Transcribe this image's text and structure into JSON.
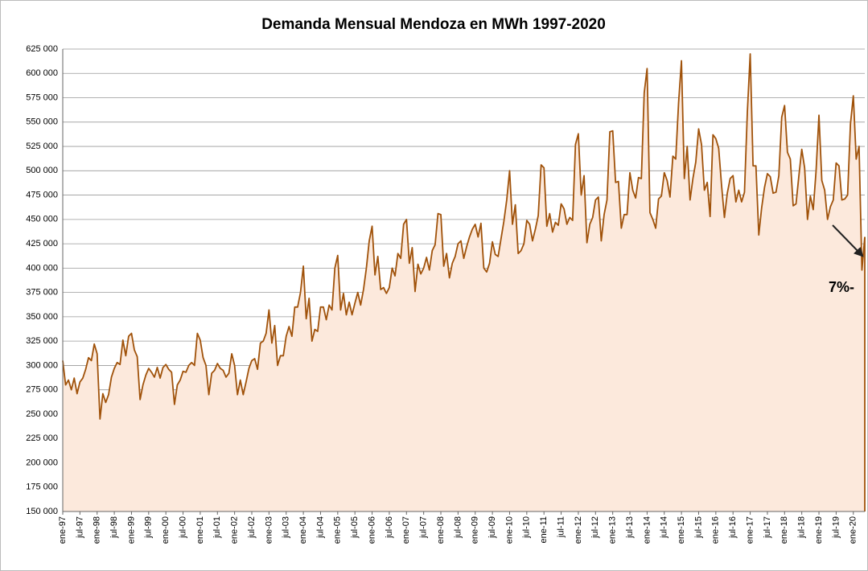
{
  "chart_data": {
    "type": "area-line",
    "title": "Demanda Mensual Mendoza en MWh 1997-2020",
    "annotation": "7%-",
    "color": "#a0520a",
    "fill": "#fce9dc",
    "categories": [
      "ene-97",
      null,
      null,
      null,
      null,
      null,
      "jul-97",
      null,
      null,
      null,
      null,
      null,
      "ene-98",
      null,
      null,
      null,
      null,
      null,
      "jul-98",
      null,
      null,
      null,
      null,
      null,
      "ene-99",
      null,
      null,
      null,
      null,
      null,
      "jul-99",
      null,
      null,
      null,
      null,
      null,
      "ene-00",
      null,
      null,
      null,
      null,
      null,
      "jul-00",
      null,
      null,
      null,
      null,
      null,
      "ene-01",
      null,
      null,
      null,
      null,
      null,
      "jul-01",
      null,
      null,
      null,
      null,
      null,
      "ene-02",
      null,
      null,
      null,
      null,
      null,
      "jul-02",
      null,
      null,
      null,
      null,
      null,
      "ene-03",
      null,
      null,
      null,
      null,
      null,
      "jul-03",
      null,
      null,
      null,
      null,
      null,
      "ene-04",
      null,
      null,
      null,
      null,
      null,
      "jul-04",
      null,
      null,
      null,
      null,
      null,
      "ene-05",
      null,
      null,
      null,
      null,
      null,
      "jul-05",
      null,
      null,
      null,
      null,
      null,
      "ene-06",
      null,
      null,
      null,
      null,
      null,
      "jul-06",
      null,
      null,
      null,
      null,
      null,
      "ene-07",
      null,
      null,
      null,
      null,
      null,
      "jul-07",
      null,
      null,
      null,
      null,
      null,
      "ene-08",
      null,
      null,
      null,
      null,
      null,
      "jul-08",
      null,
      null,
      null,
      null,
      null,
      "ene-09",
      null,
      null,
      null,
      null,
      null,
      "jul-09",
      null,
      null,
      null,
      null,
      null,
      "ene-10",
      null,
      null,
      null,
      null,
      null,
      "jul-10",
      null,
      null,
      null,
      null,
      null,
      "ene-11",
      null,
      null,
      null,
      null,
      null,
      "jul-11",
      null,
      null,
      null,
      null,
      null,
      "ene-12",
      null,
      null,
      null,
      null,
      null,
      "jul-12",
      null,
      null,
      null,
      null,
      null,
      "ene-13",
      null,
      null,
      null,
      null,
      null,
      "jul-13",
      null,
      null,
      null,
      null,
      null,
      "ene-14",
      null,
      null,
      null,
      null,
      null,
      "jul-14",
      null,
      null,
      null,
      null,
      null,
      "ene-15",
      null,
      null,
      null,
      null,
      null,
      "jul-15",
      null,
      null,
      null,
      null,
      null,
      "ene-16",
      null,
      null,
      null,
      null,
      null,
      "jul-16",
      null,
      null,
      null,
      null,
      null,
      "ene-17",
      null,
      null,
      null,
      null,
      null,
      "jul-17",
      null,
      null,
      null,
      null,
      null,
      "ene-18",
      null,
      null,
      null,
      null,
      null,
      "jul-18",
      null,
      null,
      null,
      null,
      null,
      "ene-19",
      null,
      null,
      null,
      null,
      null,
      "jul-19",
      null,
      null,
      null,
      null,
      null,
      "ene-20",
      null,
      null,
      null,
      null
    ],
    "values": [
      305000,
      280000,
      285000,
      275000,
      287000,
      271000,
      283000,
      287000,
      296000,
      308000,
      305000,
      322000,
      312000,
      245000,
      271000,
      262000,
      270000,
      288000,
      297000,
      303000,
      301000,
      326000,
      310000,
      330000,
      333000,
      316000,
      309000,
      265000,
      280000,
      290000,
      297000,
      293000,
      288000,
      298000,
      287000,
      298000,
      301000,
      296000,
      293000,
      260000,
      280000,
      285000,
      294000,
      293000,
      300000,
      303000,
      300000,
      333000,
      326000,
      308000,
      300000,
      270000,
      292000,
      295000,
      302000,
      297000,
      295000,
      288000,
      292000,
      312000,
      300000,
      270000,
      285000,
      270000,
      283000,
      297000,
      305000,
      307000,
      296000,
      323000,
      325000,
      333000,
      357000,
      323000,
      341000,
      300000,
      310000,
      310000,
      330000,
      340000,
      330000,
      360000,
      360000,
      375000,
      402000,
      348000,
      369000,
      325000,
      337000,
      335000,
      360000,
      360000,
      347000,
      362000,
      357000,
      400000,
      413000,
      357000,
      374000,
      352000,
      365000,
      352000,
      364000,
      375000,
      362000,
      378000,
      400000,
      428000,
      443000,
      393000,
      412000,
      378000,
      380000,
      374000,
      380000,
      400000,
      392000,
      415000,
      410000,
      445000,
      450000,
      405000,
      421000,
      376000,
      404000,
      394000,
      400000,
      411000,
      398000,
      418000,
      424000,
      456000,
      455000,
      402000,
      415000,
      390000,
      405000,
      412000,
      425000,
      428000,
      410000,
      422000,
      432000,
      440000,
      445000,
      432000,
      446000,
      400000,
      396000,
      405000,
      427000,
      414000,
      412000,
      430000,
      448000,
      470000,
      500000,
      445000,
      465000,
      415000,
      418000,
      425000,
      449000,
      445000,
      428000,
      440000,
      454000,
      506000,
      503000,
      443000,
      456000,
      437000,
      447000,
      444000,
      466000,
      461000,
      445000,
      452000,
      449000,
      527000,
      538000,
      475000,
      495000,
      426000,
      445000,
      452000,
      470000,
      473000,
      428000,
      455000,
      470000,
      540000,
      541000,
      488000,
      489000,
      441000,
      455000,
      455000,
      498000,
      480000,
      472000,
      493000,
      492000,
      580000,
      605000,
      457000,
      450000,
      441000,
      471000,
      474000,
      498000,
      490000,
      473000,
      515000,
      512000,
      570000,
      613000,
      492000,
      525000,
      470000,
      492000,
      509000,
      543000,
      527000,
      480000,
      488000,
      453000,
      537000,
      533000,
      523000,
      485000,
      452000,
      477000,
      492000,
      495000,
      468000,
      480000,
      468000,
      478000,
      560000,
      620000,
      505000,
      505000,
      434000,
      462000,
      483000,
      497000,
      494000,
      477000,
      478000,
      495000,
      555000,
      567000,
      519000,
      512000,
      464000,
      466000,
      495000,
      522000,
      503000,
      450000,
      474000,
      460000,
      500000,
      557000,
      490000,
      480000,
      450000,
      463000,
      470000,
      508000,
      505000,
      470000,
      471000,
      475000,
      548000,
      577000,
      512000,
      525000,
      398000,
      432000
    ],
    "ylim": [
      150000,
      625000
    ],
    "yticks": [
      {
        "value": 150000,
        "label": "150 000"
      },
      {
        "value": 175000,
        "label": "175 000"
      },
      {
        "value": 200000,
        "label": "200 000"
      },
      {
        "value": 225000,
        "label": "225 000"
      },
      {
        "value": 250000,
        "label": "250 000"
      },
      {
        "value": 275000,
        "label": "275 000"
      },
      {
        "value": 300000,
        "label": "300 000"
      },
      {
        "value": 325000,
        "label": "325 000"
      },
      {
        "value": 350000,
        "label": "350 000"
      },
      {
        "value": 375000,
        "label": "375 000"
      },
      {
        "value": 400000,
        "label": "400 000"
      },
      {
        "value": 425000,
        "label": "425 000"
      },
      {
        "value": 450000,
        "label": "450 000"
      },
      {
        "value": 475000,
        "label": "475 000"
      },
      {
        "value": 500000,
        "label": "500 000"
      },
      {
        "value": 525000,
        "label": "525 000"
      },
      {
        "value": 550000,
        "label": "550 000"
      },
      {
        "value": 575000,
        "label": "575 000"
      },
      {
        "value": 600000,
        "label": "600 000"
      },
      {
        "value": 625000,
        "label": "625 000"
      }
    ],
    "grid": true
  }
}
